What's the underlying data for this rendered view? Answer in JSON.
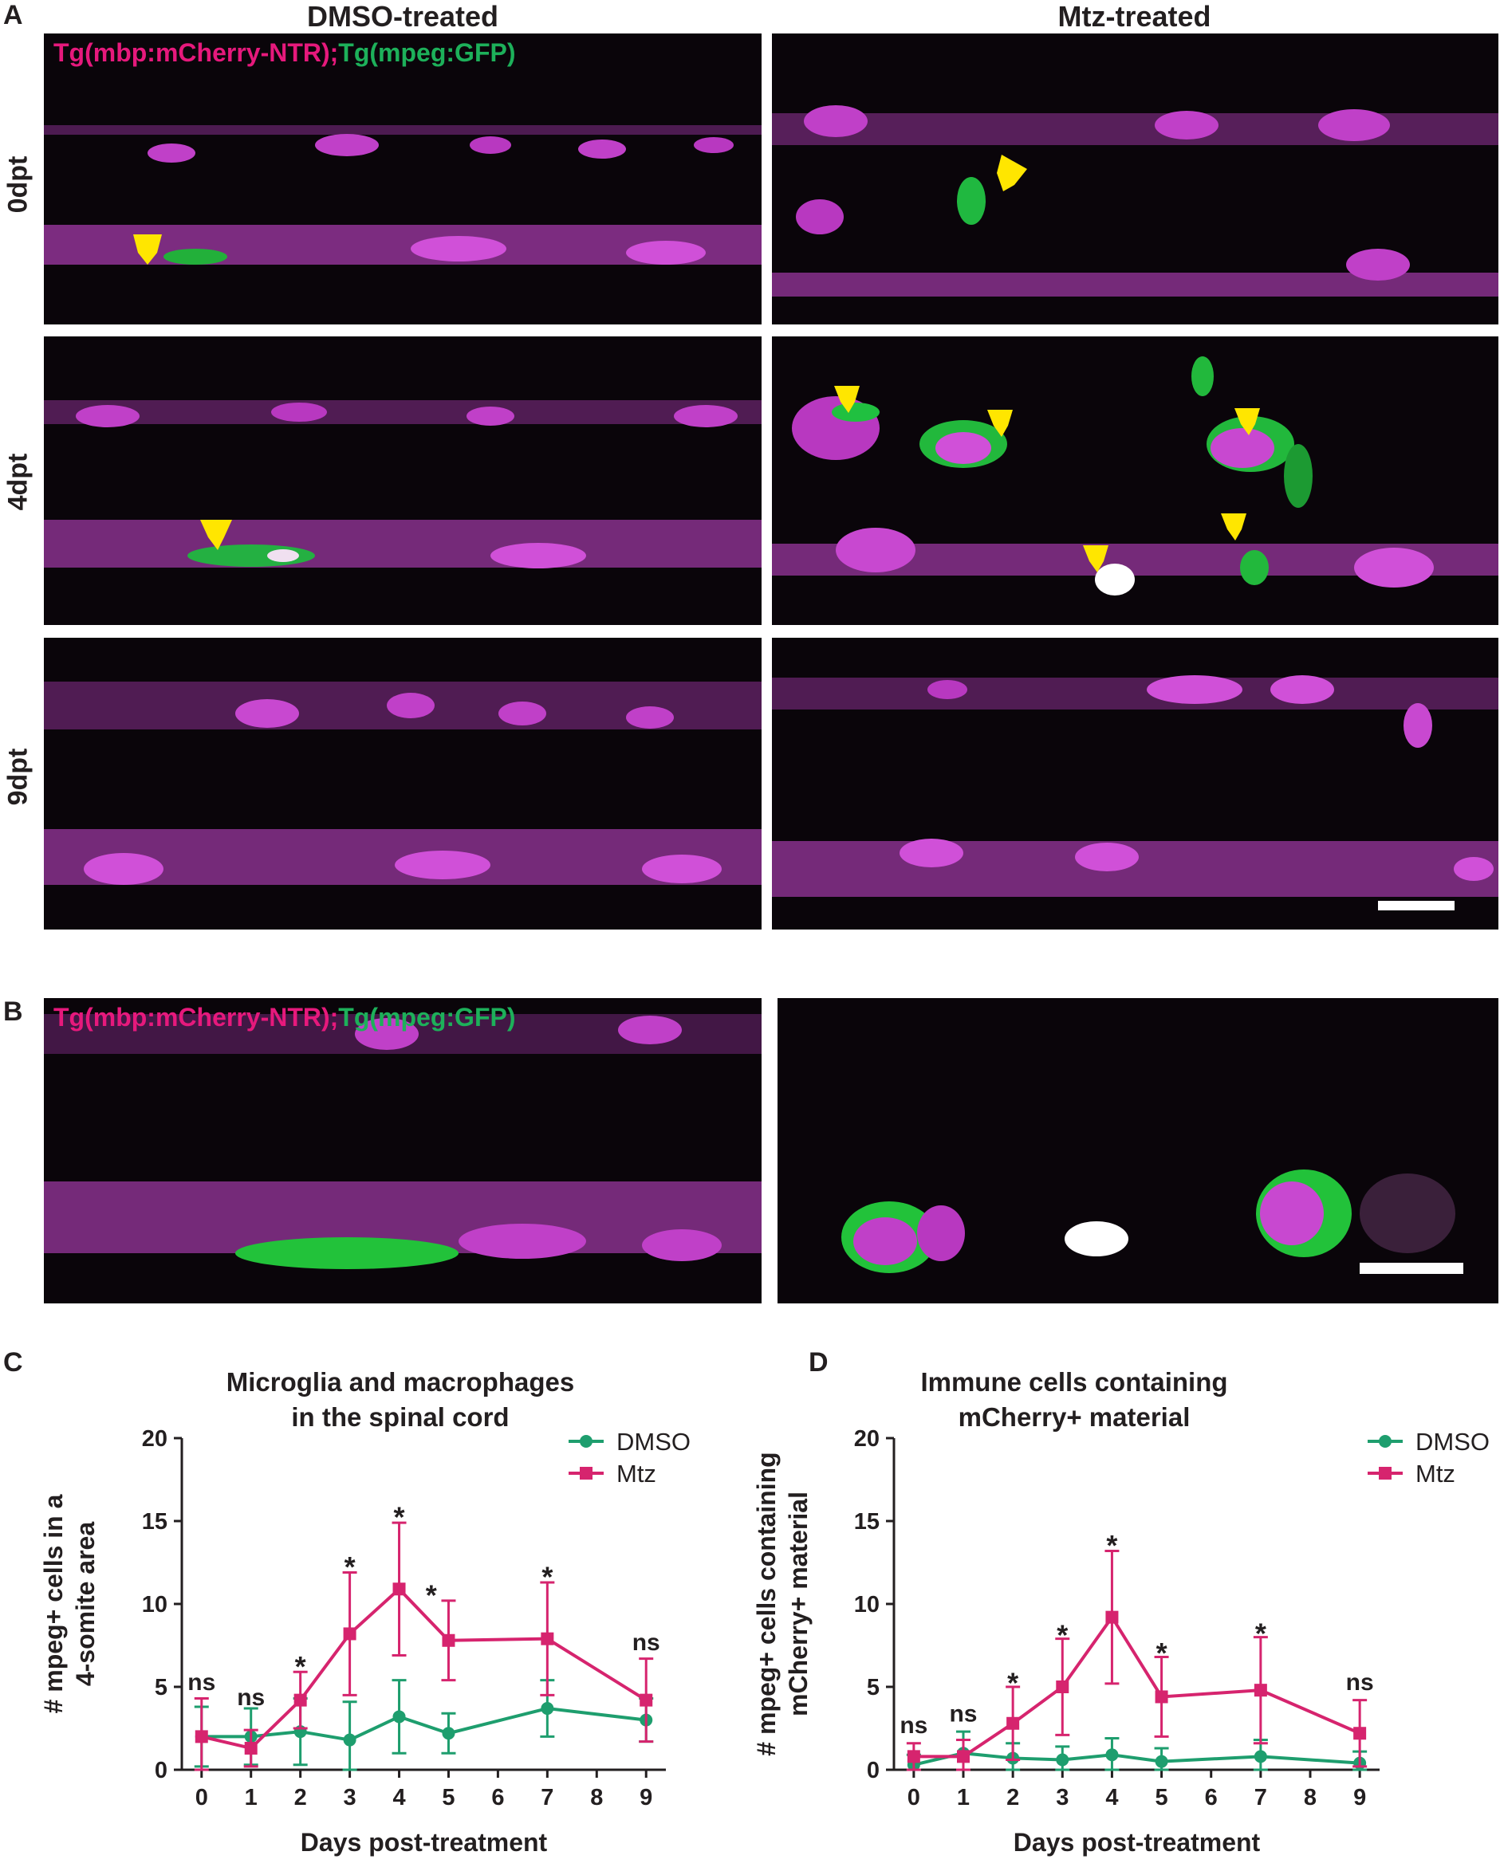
{
  "panels": {
    "A": {
      "letter": "A",
      "col_dmso": "DMSO-treated",
      "col_mtz": "Mtz-treated",
      "rows": [
        "0dpt",
        "4dpt",
        "9dpt"
      ],
      "legend_pink": "Tg(mbp:mCherry-NTR);",
      "legend_green": "Tg(mpeg:GFP)"
    },
    "B": {
      "letter": "B",
      "legend_pink": "Tg(mbp:mCherry-NTR);",
      "legend_green": "Tg(mpeg:GFP)"
    },
    "C": {
      "letter": "C"
    },
    "D": {
      "letter": "D"
    }
  },
  "colors": {
    "dmso": "#1e9e6e",
    "mtz": "#d6246e",
    "arrow": "#ffe600",
    "magenta": "#c83ccc",
    "gfp": "#22cc33"
  },
  "chart_data": [
    {
      "type": "line",
      "title": "Microglia and macrophages\nin the spinal cord",
      "title_lines": [
        "Microglia and macrophages",
        "in the spinal cord"
      ],
      "xlabel": "Days post-treatment",
      "ylabel_lines": [
        "# mpeg+ cells in a",
        "4-somite area"
      ],
      "xticks": [
        0,
        1,
        2,
        3,
        4,
        5,
        6,
        7,
        8,
        9
      ],
      "yticks": [
        0,
        5,
        10,
        15,
        20
      ],
      "xlim": [
        -0.4,
        9.4
      ],
      "ylim": [
        0,
        20
      ],
      "legend": "top-right",
      "series": [
        {
          "name": "DMSO",
          "marker": "circle",
          "color": "#1e9e6e",
          "x": [
            0,
            1,
            2,
            3,
            4,
            5,
            7,
            9
          ],
          "y": [
            2.0,
            2.0,
            2.3,
            1.8,
            3.2,
            2.2,
            3.7,
            3.0
          ],
          "err": [
            1.8,
            1.7,
            2.0,
            2.3,
            2.2,
            1.2,
            1.7,
            1.3
          ]
        },
        {
          "name": "Mtz",
          "marker": "square",
          "color": "#d6246e",
          "x": [
            0,
            1,
            2,
            3,
            4,
            5,
            7,
            9
          ],
          "y": [
            2.0,
            1.3,
            4.2,
            8.2,
            10.9,
            7.8,
            7.9,
            4.2
          ],
          "err": [
            2.3,
            1.1,
            1.7,
            3.7,
            4.0,
            2.4,
            3.4,
            2.5
          ]
        }
      ],
      "annotations": [
        {
          "x": 0,
          "y": 4.8,
          "text": "ns"
        },
        {
          "x": 1,
          "y": 3.9,
          "text": "ns"
        },
        {
          "x": 2,
          "y": 6.4,
          "text": "*"
        },
        {
          "x": 3,
          "y": 12.4,
          "text": "*"
        },
        {
          "x": 4,
          "y": 15.4,
          "text": "*"
        },
        {
          "x": 4.65,
          "y": 10.7,
          "text": "*"
        },
        {
          "x": 7,
          "y": 11.8,
          "text": "*"
        },
        {
          "x": 9,
          "y": 7.2,
          "text": "ns"
        }
      ]
    },
    {
      "type": "line",
      "title": "Immune cells containing\nmCherry+ material",
      "title_lines": [
        "Immune cells containing",
        "mCherry+ material"
      ],
      "xlabel": "Days post-treatment",
      "ylabel_lines": [
        "# mpeg+ cells containing",
        "mCherry+ material"
      ],
      "xticks": [
        0,
        1,
        2,
        3,
        4,
        5,
        6,
        7,
        8,
        9
      ],
      "yticks": [
        0,
        5,
        10,
        15,
        20
      ],
      "xlim": [
        -0.4,
        9.4
      ],
      "ylim": [
        0,
        20
      ],
      "legend": "top-right",
      "series": [
        {
          "name": "DMSO",
          "marker": "circle",
          "color": "#1e9e6e",
          "x": [
            0,
            1,
            2,
            3,
            4,
            5,
            7,
            9
          ],
          "y": [
            0.3,
            1.0,
            0.7,
            0.6,
            0.9,
            0.5,
            0.8,
            0.4
          ],
          "err": [
            0.6,
            1.3,
            0.9,
            0.8,
            1.0,
            0.8,
            1.0,
            0.7
          ]
        },
        {
          "name": "Mtz",
          "marker": "square",
          "color": "#d6246e",
          "x": [
            0,
            1,
            2,
            3,
            4,
            5,
            7,
            9
          ],
          "y": [
            0.8,
            0.8,
            2.8,
            5.0,
            9.2,
            4.4,
            4.8,
            2.2
          ],
          "err": [
            0.8,
            1.0,
            2.2,
            2.9,
            4.0,
            2.4,
            3.2,
            2.0
          ]
        }
      ],
      "annotations": [
        {
          "x": 0,
          "y": 2.2,
          "text": "ns"
        },
        {
          "x": 1,
          "y": 2.9,
          "text": "ns"
        },
        {
          "x": 2,
          "y": 5.4,
          "text": "*"
        },
        {
          "x": 3,
          "y": 8.3,
          "text": "*"
        },
        {
          "x": 4,
          "y": 13.7,
          "text": "*"
        },
        {
          "x": 5,
          "y": 7.2,
          "text": "*"
        },
        {
          "x": 7,
          "y": 8.4,
          "text": "*"
        },
        {
          "x": 9,
          "y": 4.8,
          "text": "ns"
        }
      ]
    }
  ]
}
